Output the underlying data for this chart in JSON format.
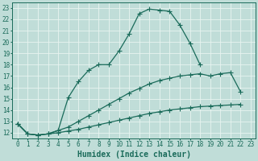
{
  "xlabel": "Humidex (Indice chaleur)",
  "xlim": [
    -0.5,
    23.5
  ],
  "ylim": [
    11.5,
    23.5
  ],
  "yticks": [
    12,
    13,
    14,
    15,
    16,
    17,
    18,
    19,
    20,
    21,
    22,
    23
  ],
  "xticks": [
    0,
    1,
    2,
    3,
    4,
    5,
    6,
    7,
    8,
    9,
    10,
    11,
    12,
    13,
    14,
    15,
    16,
    17,
    18,
    19,
    20,
    21,
    22,
    23
  ],
  "background_color": "#c0ddd8",
  "grid_color": "#e8f4f0",
  "line_color": "#1a6b5a",
  "line1_x": [
    0,
    1,
    2,
    3,
    4,
    5,
    6,
    7,
    8,
    9,
    10,
    11,
    12,
    13,
    14,
    15,
    16,
    17,
    18
  ],
  "line1_y": [
    12.8,
    11.9,
    11.8,
    11.9,
    12.2,
    15.1,
    16.5,
    17.5,
    18.0,
    18.0,
    19.2,
    20.7,
    22.5,
    22.9,
    22.8,
    22.7,
    21.5,
    19.9,
    18.0
  ],
  "line2_x": [
    0,
    1,
    2,
    3,
    4,
    5,
    6,
    7,
    8,
    9,
    10,
    11,
    12,
    13,
    14,
    15,
    16,
    17,
    18,
    19,
    20,
    21,
    22
  ],
  "line2_y": [
    12.8,
    11.9,
    11.8,
    11.9,
    12.2,
    12.5,
    13.0,
    13.5,
    14.0,
    14.5,
    15.0,
    15.5,
    15.9,
    16.3,
    16.6,
    16.8,
    17.0,
    17.1,
    17.2,
    17.0,
    17.2,
    17.3,
    15.6
  ],
  "line3_x": [
    0,
    1,
    2,
    3,
    4,
    5,
    6,
    7,
    8,
    9,
    10,
    11,
    12,
    13,
    14,
    15,
    16,
    17,
    18,
    19,
    20,
    21,
    22
  ],
  "line3_y": [
    12.8,
    11.9,
    11.8,
    11.9,
    12.0,
    12.15,
    12.3,
    12.5,
    12.7,
    12.9,
    13.1,
    13.3,
    13.5,
    13.7,
    13.85,
    14.0,
    14.1,
    14.2,
    14.3,
    14.35,
    14.4,
    14.45,
    14.5
  ],
  "tick_fontsize": 5.5,
  "xlabel_fontsize": 7,
  "marker_size": 3
}
